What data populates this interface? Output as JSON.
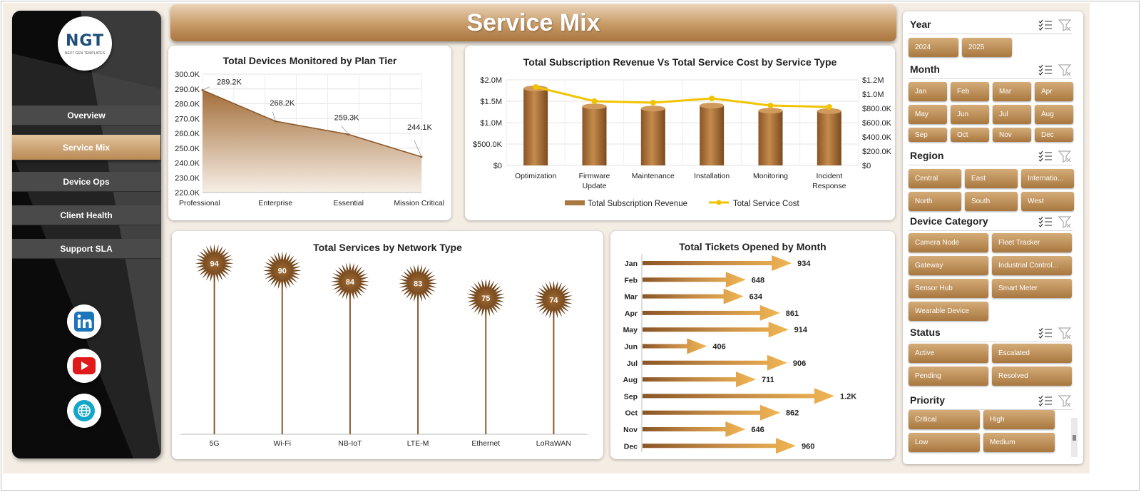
{
  "title": "Service Mix",
  "logo": {
    "text": "NGT",
    "tagline": "NEXT GEN TEMPLATES"
  },
  "nav": {
    "items": [
      {
        "label": "Overview"
      },
      {
        "label": "Service Mix"
      },
      {
        "label": "Device Ops"
      },
      {
        "label": "Client Health"
      },
      {
        "label": "Support SLA"
      }
    ]
  },
  "social": {
    "icons": [
      "linkedin-icon",
      "youtube-icon",
      "globe-icon"
    ]
  },
  "colors": {
    "accent": "#a97740",
    "accent_light": "#d4ac78",
    "line": "#f2c300",
    "sidebar": "#111111",
    "background": "#f4ede4"
  },
  "chart_data": [
    {
      "id": "devices",
      "type": "area",
      "title": "Total Devices Monitored by Plan Tier",
      "categories": [
        "Professional",
        "Enterprise",
        "Essential",
        "Mission Critical"
      ],
      "values": [
        289.2,
        268.2,
        259.3,
        244.1
      ],
      "value_labels": [
        "289.2K",
        "268.2K",
        "259.3K",
        "244.1K"
      ],
      "ylim": [
        220,
        300
      ],
      "yticks": [
        "300.0K",
        "290.0K",
        "280.0K",
        "270.0K",
        "260.0K",
        "250.0K",
        "240.0K",
        "230.0K",
        "220.0K"
      ],
      "grid": true
    },
    {
      "id": "revcost",
      "type": "bar",
      "title": "Total Subscription Revenue  Vs Total Service Cost by Service Type",
      "categories": [
        "Optimization",
        "Firmware Update",
        "Maintenance",
        "Installation",
        "Monitoring",
        "Incident Response"
      ],
      "series": [
        {
          "name": "Total Subscription Revenue",
          "type": "bar",
          "axis": "left",
          "values": [
            1.8,
            1.38,
            1.33,
            1.4,
            1.28,
            1.27
          ]
        },
        {
          "name": "Total Service Cost",
          "type": "line",
          "axis": "right",
          "values": [
            1.1,
            0.9,
            0.88,
            0.94,
            0.84,
            0.82
          ]
        }
      ],
      "left_ticks": [
        "$2.0M",
        "$1.5M",
        "$1.0M",
        "$500.0K",
        "$0"
      ],
      "right_ticks": [
        "$1.2M",
        "$1.0M",
        "$800.0K",
        "$600.0K",
        "$400.0K",
        "$200.0K",
        "$0"
      ],
      "ylim_left": [
        0,
        2.0
      ],
      "ylim_right": [
        0,
        1.2
      ],
      "legend": "bottom"
    },
    {
      "id": "network",
      "type": "bar",
      "title": "Total Services by Network Type",
      "categories": [
        "5G",
        "Wi-Fi",
        "NB-IoT",
        "LTE-M",
        "Ethernet",
        "LoRaWAN"
      ],
      "values": [
        94,
        90,
        84,
        83,
        75,
        74
      ],
      "ylim": [
        0,
        100
      ]
    },
    {
      "id": "tickets",
      "type": "bar",
      "orientation": "horizontal",
      "title": "Total Tickets Opened by Month",
      "categories": [
        "Jan",
        "Feb",
        "Mar",
        "Apr",
        "May",
        "Jun",
        "Jul",
        "Aug",
        "Sep",
        "Oct",
        "Nov",
        "Dec"
      ],
      "values": [
        934,
        648,
        634,
        861,
        914,
        406,
        906,
        711,
        1200,
        862,
        646,
        960
      ],
      "value_labels": [
        "934",
        "648",
        "634",
        "861",
        "914",
        "406",
        "906",
        "711",
        "1.2K",
        "862",
        "646",
        "960"
      ]
    }
  ],
  "slicers": [
    {
      "title": "Year",
      "items": [
        "2024",
        "2025"
      ]
    },
    {
      "title": "Month",
      "items": [
        "Jan",
        "Feb",
        "Mar",
        "Apr",
        "May",
        "Jun",
        "Jul",
        "Aug",
        "Sep",
        "Oct",
        "Nov",
        "Dec"
      ]
    },
    {
      "title": "Region",
      "items": [
        "Central",
        "East",
        "Internatio...",
        "North",
        "South",
        "West"
      ]
    },
    {
      "title": "Device Category",
      "items": [
        "Camera Node",
        "Fleet Tracker",
        "Gateway",
        "Industrial Control...",
        "Sensor Hub",
        "Smart Meter",
        "Wearable Device"
      ]
    },
    {
      "title": "Status",
      "items": [
        "Active",
        "Escalated",
        "Pending",
        "Resolved"
      ]
    },
    {
      "title": "Priority",
      "items": [
        "Critical",
        "High",
        "Low",
        "Medium"
      ]
    }
  ]
}
